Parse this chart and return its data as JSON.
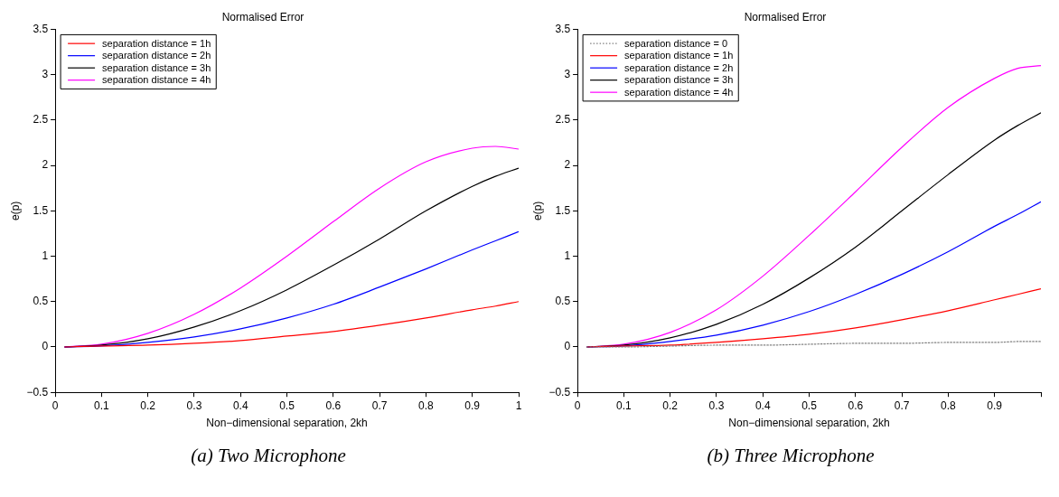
{
  "chart_data": [
    {
      "type": "line",
      "title": "Normalised Error",
      "xlabel": "Non−dimensional separation, 2kh",
      "ylabel": "e(p)",
      "annotations": [
        "(a) Two Microphone"
      ],
      "x": [
        0.02,
        0.1,
        0.2,
        0.3,
        0.4,
        0.5,
        0.6,
        0.7,
        0.8,
        0.9,
        0.95,
        1.0
      ],
      "series": [
        {
          "name": "separation distance = 1h",
          "color": "#ff0000",
          "values": [
            0,
            0.01,
            0.02,
            0.04,
            0.07,
            0.12,
            0.17,
            0.24,
            0.32,
            0.41,
            0.45,
            0.5
          ]
        },
        {
          "name": "separation distance = 2h",
          "color": "#0000ff",
          "values": [
            0,
            0.01,
            0.05,
            0.11,
            0.2,
            0.32,
            0.47,
            0.66,
            0.86,
            1.07,
            1.17,
            1.27
          ]
        },
        {
          "name": "separation distance = 3h",
          "color": "#000000",
          "values": [
            0,
            0.02,
            0.09,
            0.22,
            0.4,
            0.63,
            0.9,
            1.19,
            1.5,
            1.77,
            1.88,
            1.97
          ]
        },
        {
          "name": "separation distance = 4h",
          "color": "#ff00ff",
          "values": [
            0,
            0.03,
            0.15,
            0.36,
            0.65,
            1.0,
            1.38,
            1.75,
            2.04,
            2.19,
            2.21,
            2.18
          ]
        }
      ],
      "xlim": [
        0,
        1
      ],
      "xticks": [
        0,
        0.1,
        0.2,
        0.3,
        0.4,
        0.5,
        0.6,
        0.7,
        0.8,
        0.9,
        1
      ],
      "ylim": [
        -0.5,
        3.5
      ],
      "yticks": [
        {
          "value": -0.5,
          "label": "−0.5"
        },
        0,
        0.5,
        1,
        1.5,
        2,
        2.5,
        3,
        3.5
      ],
      "grid": false,
      "legend": "top left",
      "line_style": "solid",
      "marker": "none"
    },
    {
      "type": "line",
      "title": "Normalised Error",
      "xlabel": "Non−dimensional separation, 2kh",
      "ylabel": "e(p)",
      "annotations": [
        "(b) Three Microphone"
      ],
      "x": [
        0.02,
        0.1,
        0.2,
        0.3,
        0.4,
        0.5,
        0.6,
        0.7,
        0.8,
        0.9,
        0.95,
        1.0
      ],
      "series": [
        {
          "name": "separation distance = 0",
          "color": "#808080",
          "line_style": "dotted",
          "values": [
            0,
            0.0,
            0.01,
            0.02,
            0.02,
            0.03,
            0.04,
            0.04,
            0.05,
            0.05,
            0.06,
            0.06
          ]
        },
        {
          "name": "separation distance = 1h",
          "color": "#ff0000",
          "values": [
            0,
            0.01,
            0.02,
            0.05,
            0.09,
            0.14,
            0.21,
            0.3,
            0.4,
            0.52,
            0.58,
            0.64
          ]
        },
        {
          "name": "separation distance = 2h",
          "color": "#0000ff",
          "values": [
            0,
            0.01,
            0.06,
            0.13,
            0.24,
            0.39,
            0.58,
            0.8,
            1.05,
            1.33,
            1.46,
            1.6
          ]
        },
        {
          "name": "separation distance = 3h",
          "color": "#000000",
          "values": [
            0,
            0.02,
            0.1,
            0.25,
            0.47,
            0.76,
            1.1,
            1.5,
            1.9,
            2.28,
            2.44,
            2.58
          ]
        },
        {
          "name": "separation distance = 4h",
          "color": "#ff00ff",
          "values": [
            0,
            0.03,
            0.16,
            0.41,
            0.78,
            1.23,
            1.71,
            2.2,
            2.64,
            2.96,
            3.07,
            3.1
          ]
        }
      ],
      "xlim": [
        0,
        1
      ],
      "xticks": [
        0,
        0.1,
        0.2,
        0.3,
        0.4,
        0.5,
        0.6,
        0.7,
        0.8,
        0.9,
        {
          "value": 1,
          "label": null
        }
      ],
      "ylim": [
        -0.5,
        3.5
      ],
      "yticks": [
        {
          "value": -0.5,
          "label": "−0.5"
        },
        0,
        0.5,
        1,
        1.5,
        2,
        2.5,
        3,
        3.5
      ],
      "grid": false,
      "legend": "top left",
      "line_style": "solid",
      "marker": "none"
    }
  ]
}
